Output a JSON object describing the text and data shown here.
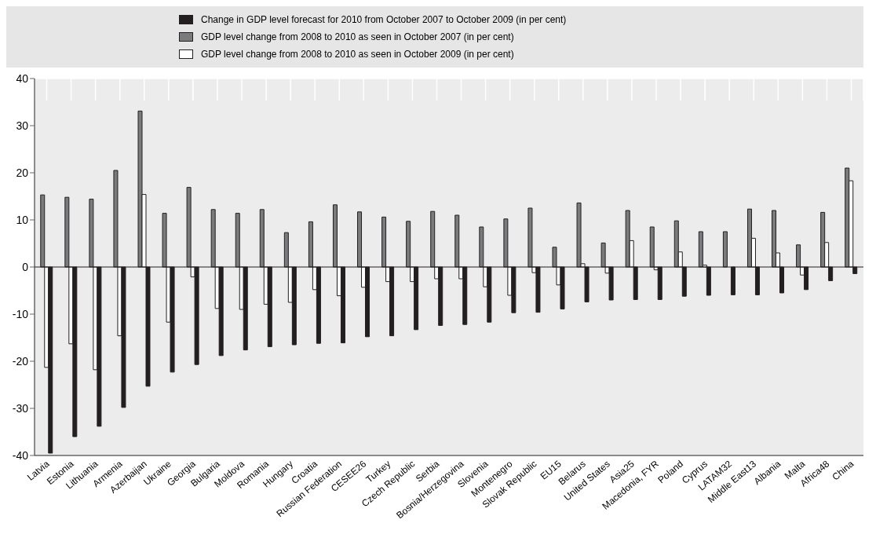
{
  "chart_data": {
    "type": "bar",
    "categories": [
      "Latvia",
      "Estonia",
      "Lithuania",
      "Armenia",
      "Azerbaijan",
      "Ukraine",
      "Georgia",
      "Bulgaria",
      "Moldova",
      "Romania",
      "Hungary",
      "Croatia",
      "Russian Federation",
      "CESEE26",
      "Turkey",
      "Czech Republic",
      "Serbia",
      "Bosnia/Herzegovina",
      "Slovenia",
      "Montenegro",
      "Slovak Republic",
      "EU15",
      "Belarus",
      "United States",
      "Asia25",
      "Macedonia, FYR",
      "Poland",
      "Cyprus",
      "LATAM32",
      "Middle East13",
      "Albania",
      "Malta",
      "Africa48",
      "China"
    ],
    "series": [
      {
        "name": "GDP level change from 2008 to 2010 as seen in October 2007 (in per cent)",
        "color": "#7a7b7d",
        "values": [
          15.3,
          14.8,
          14.4,
          20.5,
          33.1,
          11.4,
          16.9,
          12.2,
          11.4,
          12.2,
          7.3,
          9.6,
          13.2,
          11.7,
          10.6,
          9.7,
          11.8,
          11.0,
          8.5,
          10.2,
          12.5,
          4.2,
          13.6,
          5.1,
          12.0,
          8.5,
          9.8,
          7.5,
          7.5,
          12.3,
          12.0,
          4.7,
          11.6,
          21.0
        ]
      },
      {
        "name": "GDP level change from 2008 to 2010 as seen in October 2009 (in per cent)",
        "color": "#ffffff",
        "values": [
          -21.3,
          -16.3,
          -21.8,
          -14.6,
          15.4,
          -11.7,
          -2.1,
          -8.8,
          -9.0,
          -7.9,
          -7.5,
          -4.8,
          -6.1,
          -4.3,
          -3.1,
          -3.1,
          -2.5,
          -2.5,
          -4.2,
          -6.0,
          -1.2,
          -3.8,
          0.7,
          -1.3,
          5.6,
          -0.6,
          3.2,
          0.4,
          0,
          6.1,
          3.0,
          -1.7,
          5.2,
          18.3
        ]
      },
      {
        "name": "Change in GDP level forecast for 2010 from October 2007 to October 2009 (in per cent)",
        "color": "#231f20",
        "values": [
          -39.5,
          -36.0,
          -33.8,
          -29.8,
          -25.3,
          -22.3,
          -20.7,
          -18.8,
          -17.6,
          -16.9,
          -16.5,
          -16.2,
          -16.1,
          -14.8,
          -14.6,
          -13.3,
          -12.4,
          -12.2,
          -11.7,
          -9.7,
          -9.6,
          -8.9,
          -7.4,
          -7.0,
          -6.9,
          -6.9,
          -6.2,
          -6.0,
          -5.9,
          -5.9,
          -5.5,
          -4.8,
          -2.9,
          -1.4
        ]
      }
    ],
    "ylim": [
      -40,
      40
    ],
    "yticks": [
      -40,
      -30,
      -20,
      -10,
      0,
      10,
      20,
      30,
      40
    ],
    "grid": true,
    "legend": "top"
  }
}
